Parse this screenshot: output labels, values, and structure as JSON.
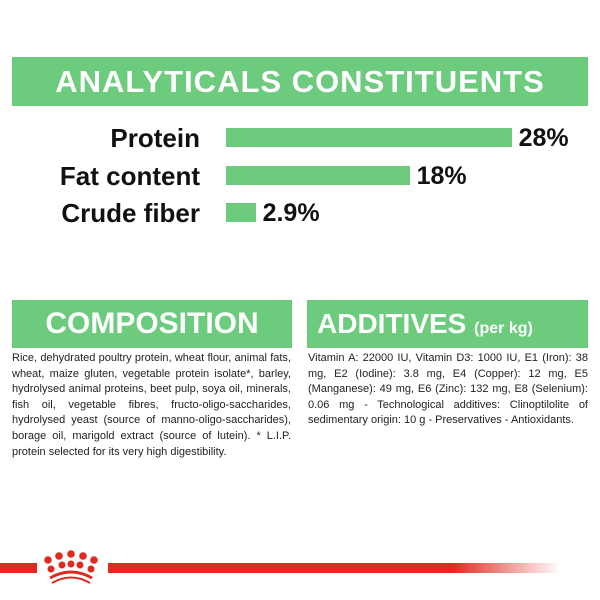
{
  "title": "ANALYTICALS CONSTITUENTS",
  "chart_data": {
    "type": "bar",
    "orientation": "horizontal",
    "categories": [
      "Protein",
      "Fat content",
      "Crude fiber"
    ],
    "values": [
      28,
      18,
      2.9
    ],
    "value_labels": [
      "28%",
      "18%",
      "2.9%"
    ],
    "unit": "%",
    "color": "#6ccb7c"
  },
  "composition": {
    "heading": "COMPOSITION",
    "text": "Rice, dehydrated poultry protein, wheat flour, animal fats, wheat, maize gluten, vegetable protein isolate*, barley, hydrolysed animal proteins, beet pulp, soya oil, minerals, fish oil, vegetable fibres, fructo-oligo-saccharides, hydrolysed yeast (source of manno-oligo-saccharides), borage oil, marigold extract (source of lutein). * L.I.P. protein selected for its very high digestibility."
  },
  "additives": {
    "heading": "ADDITIVES",
    "unit": "(per kg)",
    "text": "Vitamin A: 22000 IU, Vitamin D3: 1000 IU, E1 (Iron): 38 mg, E2 (Iodine): 3.8 mg, E4 (Copper): 12 mg, E5 (Manganese): 49 mg, E6 (Zinc): 132 mg, E8 (Selenium): 0.06 mg - Technological additives: Clinoptilolite of sedimentary origin: 10 g - Preservatives - Antioxidants."
  },
  "colors": {
    "green": "#6ccb7c",
    "brand_red": "#e0291f"
  },
  "logo": "royal-canin-crown"
}
